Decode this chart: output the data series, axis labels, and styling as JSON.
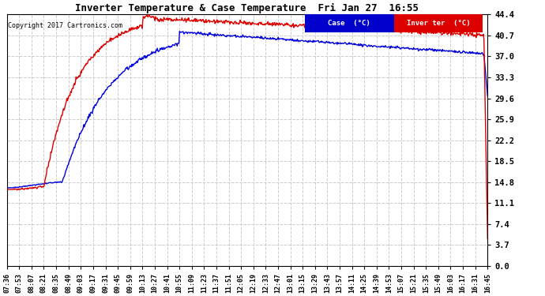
{
  "title": "Inverter Temperature & Case Temperature  Fri Jan 27  16:55",
  "copyright": "Copyright 2017 Cartronics.com",
  "yticks": [
    0.0,
    3.7,
    7.4,
    11.1,
    14.8,
    18.5,
    22.2,
    25.9,
    29.6,
    33.3,
    37.0,
    40.7,
    44.4
  ],
  "ymin": 0.0,
  "ymax": 44.4,
  "fig_bg_color": "#ffffff",
  "plot_bg_color": "#ffffff",
  "grid_color": "#cccccc",
  "case_color": "#0000dd",
  "inverter_color": "#dd0000",
  "legend_case_bg": "#0000cc",
  "legend_inverter_bg": "#dd0000",
  "legend_case_label": "Case  (°C)",
  "legend_inverter_label": "Inver ter  (°C)",
  "xtick_labels": [
    "07:36",
    "07:53",
    "08:07",
    "08:21",
    "08:35",
    "08:49",
    "09:03",
    "09:17",
    "09:31",
    "09:45",
    "09:59",
    "10:13",
    "10:27",
    "10:41",
    "10:55",
    "11:09",
    "11:23",
    "11:37",
    "11:51",
    "12:05",
    "12:19",
    "12:33",
    "12:47",
    "13:01",
    "13:15",
    "13:29",
    "13:43",
    "13:57",
    "14:11",
    "14:25",
    "14:39",
    "14:53",
    "15:07",
    "15:21",
    "15:35",
    "15:49",
    "16:03",
    "16:17",
    "16:31",
    "16:45"
  ]
}
